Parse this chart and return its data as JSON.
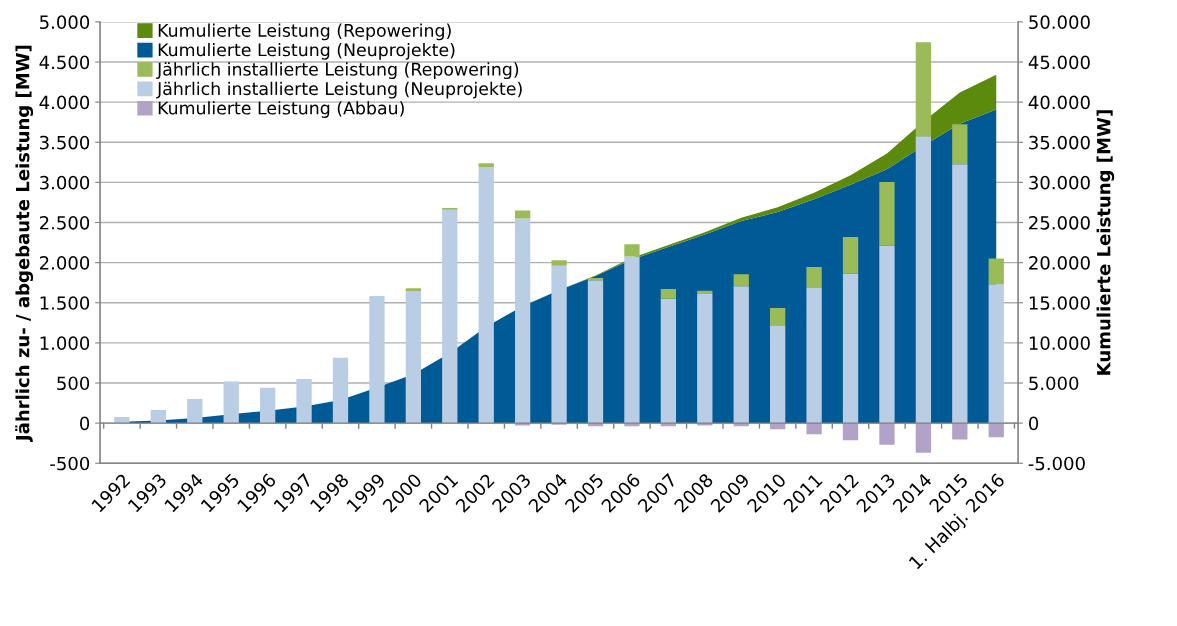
{
  "chart_data": {
    "type": "bar",
    "stacked": true,
    "ylabel": "Jährlich zu- / abgebaute Leistung [MW]",
    "y2label": "Kumulierte Leistung [MW]",
    "categories": [
      "1992",
      "1993",
      "1994",
      "1995",
      "1996",
      "1997",
      "1998",
      "1999",
      "2000",
      "2001",
      "2002",
      "2003",
      "2004",
      "2005",
      "2006",
      "2007",
      "2008",
      "2009",
      "2010",
      "2011",
      "2012",
      "2013",
      "2014",
      "2015",
      "1. Halbj. 2016"
    ],
    "series": [
      {
        "name": "Kumulierte Leistung (Repowering)",
        "type": "area",
        "axis": "y2",
        "color": "#5b8a0c",
        "values": [
          0,
          0,
          0,
          0,
          0,
          0,
          0,
          0,
          0,
          0,
          0,
          30,
          50,
          60,
          200,
          250,
          300,
          400,
          600,
          800,
          1200,
          1950,
          3030,
          3880,
          4310
        ]
      },
      {
        "name": "Kumulierte Leistung (Neuprojekte)",
        "type": "area",
        "axis": "y2",
        "color": "#005a96",
        "values": [
          180,
          330,
          630,
          1120,
          1550,
          2080,
          2870,
          4440,
          6100,
          8750,
          12000,
          14570,
          16550,
          18340,
          20400,
          21950,
          23500,
          25200,
          26300,
          27900,
          29700,
          31650,
          34570,
          37320,
          39090
        ]
      },
      {
        "name": "Jährlich installierte Leistung (Repowering)",
        "color": "#9bbb59",
        "values": [
          0,
          0,
          0,
          0,
          0,
          0,
          0,
          0,
          35,
          20,
          50,
          100,
          70,
          30,
          155,
          120,
          40,
          150,
          215,
          260,
          460,
          790,
          1170,
          500,
          320
        ]
      },
      {
        "name": "Jährlich installierte Leistung (Neuprojekte)",
        "color": "#b9cde5",
        "values": [
          75,
          165,
          300,
          520,
          440,
          550,
          815,
          1585,
          1645,
          2660,
          3190,
          2550,
          1960,
          1780,
          2075,
          1550,
          1610,
          1705,
          1220,
          1685,
          1860,
          2215,
          3575,
          3225,
          1730
        ]
      },
      {
        "name": "Kumulierte Leistung (Abbau)",
        "color": "#b3a2c7",
        "values": [
          0,
          0,
          0,
          0,
          0,
          0,
          0,
          0,
          0,
          null,
          null,
          -30,
          -20,
          -40,
          -40,
          -40,
          -30,
          -40,
          -75,
          -140,
          -215,
          -270,
          -370,
          -205,
          -175
        ]
      }
    ],
    "ylim": [
      -500,
      5000
    ],
    "yticks": [
      {
        "value": -500,
        "label": "-500"
      },
      0,
      500,
      {
        "value": 1000,
        "label": "1.000"
      },
      {
        "value": 1500,
        "label": "1.500"
      },
      {
        "value": 2000,
        "label": "2.000"
      },
      {
        "value": 2500,
        "label": "2.500"
      },
      {
        "value": 3000,
        "label": "3.000"
      },
      {
        "value": 3500,
        "label": "3.500"
      },
      {
        "value": 4000,
        "label": "4.000"
      },
      {
        "value": 4500,
        "label": "4.500"
      },
      {
        "value": 5000,
        "label": "5.000"
      }
    ],
    "y2lim": [
      -5000,
      50000
    ],
    "y2ticks": [
      {
        "value": -5000,
        "label": "-5.000"
      },
      0,
      {
        "value": 5000,
        "label": "5.000"
      },
      {
        "value": 10000,
        "label": "10.000"
      },
      {
        "value": 15000,
        "label": "15.000"
      },
      {
        "value": 20000,
        "label": "20.000"
      },
      {
        "value": 25000,
        "label": "25.000"
      },
      {
        "value": 30000,
        "label": "30.000"
      },
      {
        "value": 35000,
        "label": "35.000"
      },
      {
        "value": 40000,
        "label": "40.000"
      },
      {
        "value": 45000,
        "label": "45.000"
      },
      {
        "value": 50000,
        "label": "50.000"
      }
    ],
    "grid": "y",
    "legend": "top left"
  }
}
